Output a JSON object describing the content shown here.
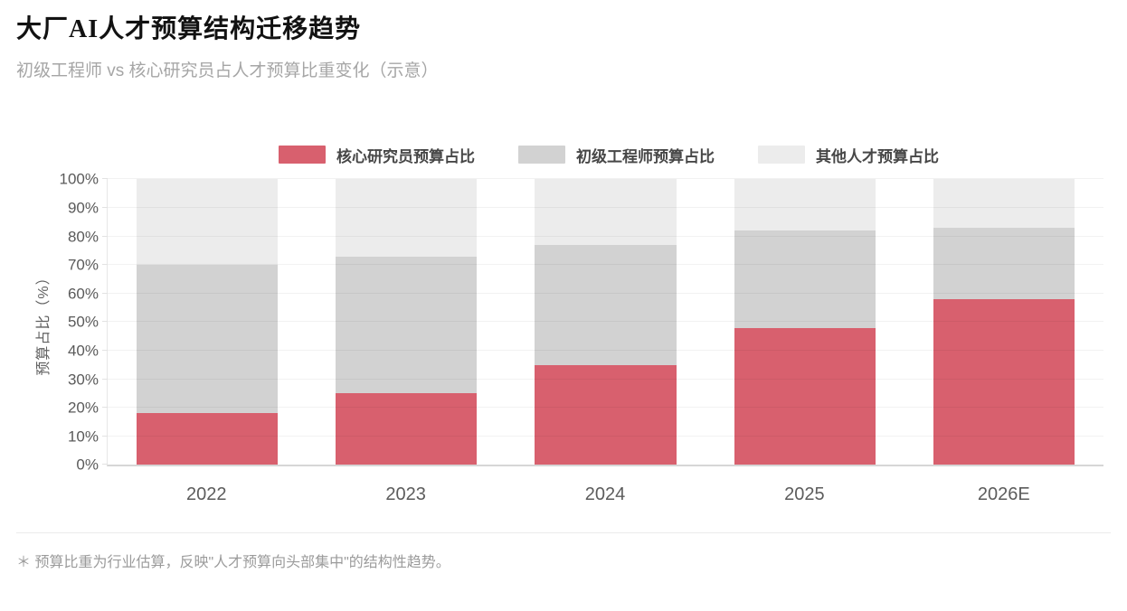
{
  "header": {
    "title": "大厂AI人才预算结构迁移趋势",
    "subtitle": "初级工程师 vs 核心研究员占人才预算比重变化（示意）"
  },
  "chart_data": {
    "type": "bar",
    "stacked": true,
    "title": "大厂AI人才预算结构迁移趋势",
    "categories": [
      "2022",
      "2023",
      "2024",
      "2025",
      "2026E"
    ],
    "series": [
      {
        "name": "核心研究员预算占比",
        "color": "#d8606e",
        "values": [
          18,
          25,
          35,
          48,
          58
        ]
      },
      {
        "name": "初级工程师预算占比",
        "color": "#d2d2d2",
        "values": [
          52,
          48,
          42,
          34,
          25
        ]
      },
      {
        "name": "其他人才预算占比",
        "color": "#ececec",
        "values": [
          30,
          27,
          23,
          18,
          17
        ]
      }
    ],
    "xlabel": "",
    "ylabel": "预算占比（%）",
    "ylim": [
      0,
      100
    ],
    "ytick_step": 10,
    "ytick_suffix": "%",
    "grid": true,
    "legend_position": "top",
    "colors": {
      "grid_overlay": "rgba(0,0,0,0.05)",
      "axis_line": "#d6d6d6",
      "tick_text": "#5a5a5a"
    }
  },
  "footnote": {
    "text": "＊ 预算比重为行业估算，反映\"人才预算向头部集中\"的结构性趋势。"
  }
}
